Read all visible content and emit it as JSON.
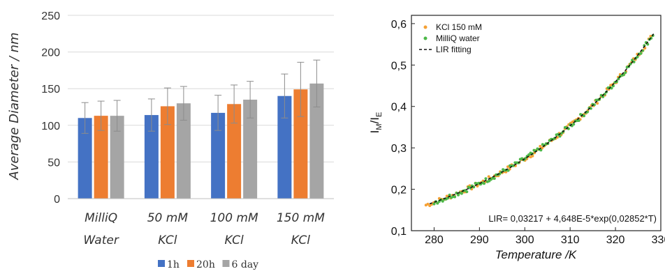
{
  "chart_data": [
    {
      "type": "bar",
      "title": "",
      "ylabel": "Average Diameter / nm",
      "xlabel": "",
      "ylim": [
        0,
        250
      ],
      "yticks": [
        0,
        50,
        100,
        150,
        200,
        250
      ],
      "grid": true,
      "legend_position": "bottom",
      "categories": [
        {
          "line1": "MilliQ",
          "line2": "Water"
        },
        {
          "line1": "50 mM",
          "line2": "KCl"
        },
        {
          "line1": "100 mM",
          "line2": "KCl"
        },
        {
          "line1": "150 mM",
          "line2": "KCl"
        }
      ],
      "series": [
        {
          "name": "1h",
          "color": "#4472C4",
          "values": [
            110,
            114,
            117,
            140
          ],
          "errors": [
            21,
            22,
            24,
            30
          ]
        },
        {
          "name": "20h",
          "color": "#ED7D31",
          "values": [
            113,
            126,
            129,
            149
          ],
          "errors": [
            20,
            25,
            26,
            37
          ]
        },
        {
          "name": "6 day",
          "color": "#A5A5A5",
          "values": [
            113,
            130,
            135,
            157
          ],
          "errors": [
            21,
            23,
            25,
            32
          ]
        }
      ]
    },
    {
      "type": "scatter",
      "title": "",
      "xlabel": "Temperature /K",
      "ylabel": {
        "base": "I",
        "sub1": "M",
        "sep": "/I",
        "sub2": "E"
      },
      "xlim": [
        275,
        330
      ],
      "ylim": [
        0.1,
        0.62
      ],
      "xticks": [
        280,
        290,
        300,
        310,
        320,
        330
      ],
      "yticks": [
        "0,1",
        "0,2",
        "0,3",
        "0,4",
        "0,5",
        "0,6"
      ],
      "legend_position": "top-left",
      "series": [
        {
          "name": "KCl 150 mM",
          "color": "#F5A033"
        },
        {
          "name": "MilliQ water",
          "color": "#4CB848"
        }
      ],
      "fit": {
        "name": "LIR fitting",
        "a": 0.03217,
        "b": 4.648e-05,
        "c": 0.02852,
        "label": "LIR= 0,03217 + 4,648E-5*exp(0,02852*T)"
      }
    }
  ]
}
